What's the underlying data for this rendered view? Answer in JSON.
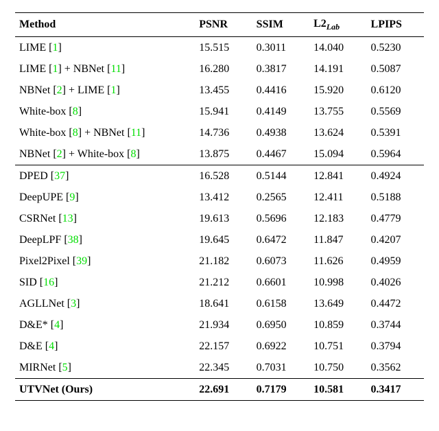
{
  "header": {
    "method": "Method",
    "psnr": "PSNR",
    "ssim": "SSIM",
    "l2lab_prefix": "L2",
    "l2lab_sub": "Lab",
    "lpips": "LPIPS"
  },
  "group1": [
    {
      "name": "LIME",
      "refs": [
        "1"
      ],
      "plus": null,
      "plus_refs": null,
      "psnr": "15.515",
      "ssim": "0.3011",
      "l2": "14.040",
      "lpips": "0.5230"
    },
    {
      "name": "LIME",
      "refs": [
        "1"
      ],
      "plus": "NBNet",
      "plus_refs": [
        "11"
      ],
      "psnr": "16.280",
      "ssim": "0.3817",
      "l2": "14.191",
      "lpips": "0.5087"
    },
    {
      "name": "NBNet",
      "refs": [
        "2"
      ],
      "plus": "LIME",
      "plus_refs": [
        "1"
      ],
      "psnr": "13.455",
      "ssim": "0.4416",
      "l2": "15.920",
      "lpips": "0.6120"
    },
    {
      "name": "White-box",
      "refs": [
        "8"
      ],
      "plus": null,
      "plus_refs": null,
      "psnr": "15.941",
      "ssim": "0.4149",
      "l2": "13.755",
      "lpips": "0.5569"
    },
    {
      "name": "White-box",
      "refs": [
        "8"
      ],
      "plus": "NBNet",
      "plus_refs": [
        "11"
      ],
      "psnr": "14.736",
      "ssim": "0.4938",
      "l2": "13.624",
      "lpips": "0.5391"
    },
    {
      "name": "NBNet",
      "refs": [
        "2"
      ],
      "plus": "White-box",
      "plus_refs": [
        "8"
      ],
      "psnr": "13.875",
      "ssim": "0.4467",
      "l2": "15.094",
      "lpips": "0.5964"
    }
  ],
  "group2": [
    {
      "name": "DPED",
      "refs": [
        "37"
      ],
      "psnr": "16.528",
      "ssim": "0.5144",
      "l2": "12.841",
      "lpips": "0.4924"
    },
    {
      "name": "DeepUPE",
      "refs": [
        "9"
      ],
      "psnr": "13.412",
      "ssim": "0.2565",
      "l2": "12.411",
      "lpips": "0.5188"
    },
    {
      "name": "CSRNet",
      "refs": [
        "13"
      ],
      "psnr": "19.613",
      "ssim": "0.5696",
      "l2": "12.183",
      "lpips": "0.4779"
    },
    {
      "name": "DeepLPF",
      "refs": [
        "38"
      ],
      "psnr": "19.645",
      "ssim": "0.6472",
      "l2": "11.847",
      "lpips": "0.4207"
    },
    {
      "name": "Pixel2Pixel",
      "refs": [
        "39"
      ],
      "psnr": "21.182",
      "ssim": "0.6073",
      "l2": "11.626",
      "lpips": "0.4959"
    },
    {
      "name": "SID",
      "refs": [
        "16"
      ],
      "psnr": "21.212",
      "ssim": "0.6601",
      "l2": "10.998",
      "lpips": "0.4026"
    },
    {
      "name": "AGLLNet",
      "refs": [
        "3"
      ],
      "psnr": "18.641",
      "ssim": "0.6158",
      "l2": "13.649",
      "lpips": "0.4472"
    },
    {
      "name": "D&E*",
      "refs": [
        "4"
      ],
      "psnr": "21.934",
      "ssim": "0.6950",
      "l2": "10.859",
      "lpips": "0.3744"
    },
    {
      "name": "D&E",
      "refs": [
        "4"
      ],
      "psnr": "22.157",
      "ssim": "0.6922",
      "l2": "10.751",
      "lpips": "0.3794"
    },
    {
      "name": "MIRNet",
      "refs": [
        "5"
      ],
      "psnr": "22.345",
      "ssim": "0.7031",
      "l2": "10.750",
      "lpips": "0.3562"
    }
  ],
  "ours": {
    "name": "UTVNet (Ours)",
    "psnr": "22.691",
    "ssim": "0.7179",
    "l2": "10.581",
    "lpips": "0.3417"
  },
  "style": {
    "cite_color": "#00dd00",
    "font_family": "Times New Roman",
    "body_fontsize": 16,
    "header_fontweight": "bold",
    "rule_thick": 1.6,
    "rule_thin": 0.8
  }
}
